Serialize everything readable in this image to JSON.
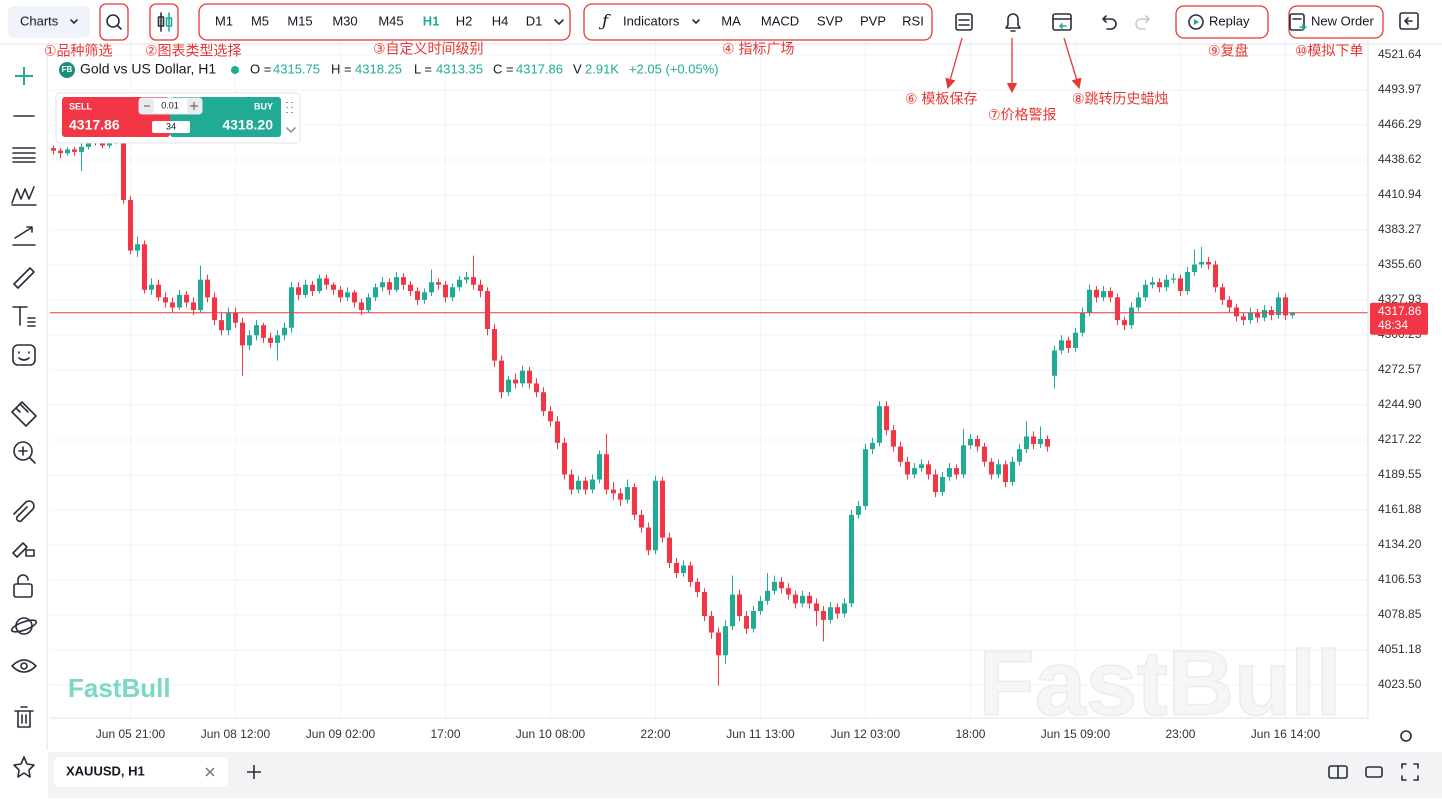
{
  "toolbar": {
    "charts": "Charts",
    "timeframes": [
      "M1",
      "M5",
      "M15",
      "M30",
      "M45",
      "H1",
      "H2",
      "H4",
      "D1"
    ],
    "indicators": "Indicators",
    "indicator_shortcuts": [
      "MA",
      "MACD",
      "SVP",
      "PVP",
      "RSI"
    ],
    "replay": "Replay",
    "new_order": "New Order"
  },
  "annotations": [
    "①品种筛选",
    "②图表类型选择",
    "③自定义时间级别",
    "④ 指标广场",
    "⑥ 模板保存",
    "⑦价格警报",
    "⑧跳转历史蜡烛",
    "⑨复盘",
    "⑩模拟下单"
  ],
  "legend": {
    "badge": "FB",
    "symbol": "Gold vs US Dollar, H1",
    "o_label": "O =",
    "h_label": "H =",
    "l_label": "L =",
    "c_label": "C =",
    "v_label": "V",
    "volume": "2.91K",
    "change": "+2.05 (+0.05%)"
  },
  "trade_panel": {
    "sell": "SELL",
    "buy": "BUY",
    "lot": "0.01",
    "spread": "34",
    "sell_price": "4317.86",
    "buy_price": "4318.20"
  },
  "countdown": "48:34",
  "watermark": "FastBull",
  "tab": "XAUUSD, H1",
  "chart_data": {
    "type": "candlestick",
    "up_color": "#22ab94",
    "down_color": "#f23645",
    "grid": true,
    "xlim": [
      -0.5,
      187.79
    ],
    "ylim": [
      3997.4,
      4533.5
    ],
    "xticks": [
      {
        "value": 11,
        "label": "Jun 05 21:00"
      },
      {
        "value": 26,
        "label": "Jun 08 12:00"
      },
      {
        "value": 41,
        "label": "Jun 09 02:00"
      },
      {
        "value": 56,
        "label": "17:00"
      },
      {
        "value": 71,
        "label": "Jun 10 08:00"
      },
      {
        "value": 86,
        "label": "22:00"
      },
      {
        "value": 101,
        "label": "Jun 11 13:00"
      },
      {
        "value": 116,
        "label": "Jun 12 03:00"
      },
      {
        "value": 131,
        "label": "18:00"
      },
      {
        "value": 146,
        "label": "Jun 15 09:00"
      },
      {
        "value": 161,
        "label": "23:00"
      },
      {
        "value": 176,
        "label": "Jun 16 14:00"
      }
    ],
    "yticks": [
      4521.64,
      4493.97,
      4466.29,
      4438.62,
      4410.94,
      4383.27,
      {
        "value": 4355.6,
        "label": "4355.60"
      },
      4327.93,
      4300.25,
      4272.57,
      {
        "value": 4244.9,
        "label": "4244.90"
      },
      4217.22,
      4189.55,
      4161.88,
      {
        "value": 4134.2,
        "label": "4134.20"
      },
      4106.53,
      4078.85,
      4051.18,
      {
        "value": 4023.5,
        "label": "4023.50"
      }
    ],
    "values": [
      [
        4448,
        4450,
        4443,
        4446
      ],
      [
        4446,
        4448,
        4440,
        4444
      ],
      [
        4444,
        4449,
        4442,
        4447
      ],
      [
        4447,
        4449,
        4442,
        4445
      ],
      [
        4445,
        4455,
        4430,
        4449
      ],
      [
        4449,
        4458,
        4447,
        4455
      ],
      [
        4455,
        4457,
        4450,
        4452
      ],
      [
        4452,
        4454,
        4448,
        4450
      ],
      [
        4450,
        4456,
        4448,
        4453
      ],
      [
        4453,
        4460,
        4451,
        4454
      ],
      [
        4454,
        4456,
        4404,
        4407
      ],
      [
        4407,
        4410,
        4364,
        4367
      ],
      [
        4367,
        4378,
        4362,
        4372
      ],
      [
        4372,
        4375,
        4333,
        4336
      ],
      [
        4336,
        4345,
        4332,
        4340
      ],
      [
        4340,
        4344,
        4327,
        4330
      ],
      [
        4330,
        4334,
        4322,
        4326
      ],
      [
        4326,
        4330,
        4318,
        4322
      ],
      [
        4322,
        4336,
        4320,
        4332
      ],
      [
        4332,
        4335,
        4322,
        4326
      ],
      [
        4326,
        4330,
        4316,
        4320
      ],
      [
        4320,
        4355,
        4318,
        4344
      ],
      [
        4344,
        4348,
        4326,
        4330
      ],
      [
        4330,
        4334,
        4308,
        4312
      ],
      [
        4312,
        4318,
        4300,
        4304
      ],
      [
        4304,
        4322,
        4300,
        4318
      ],
      [
        4318,
        4322,
        4306,
        4310
      ],
      [
        4310,
        4314,
        4268,
        4292
      ],
      [
        4292,
        4304,
        4288,
        4300
      ],
      [
        4300,
        4312,
        4296,
        4308
      ],
      [
        4308,
        4310,
        4294,
        4298
      ],
      [
        4298,
        4302,
        4290,
        4294
      ],
      [
        4294,
        4304,
        4280,
        4300
      ],
      [
        4300,
        4310,
        4296,
        4306
      ],
      [
        4306,
        4342,
        4302,
        4338
      ],
      [
        4338,
        4342,
        4328,
        4332
      ],
      [
        4332,
        4344,
        4330,
        4340
      ],
      [
        4340,
        4343,
        4331,
        4335
      ],
      [
        4335,
        4348,
        4333,
        4345
      ],
      [
        4345,
        4348,
        4336,
        4340
      ],
      [
        4340,
        4342,
        4332,
        4336
      ],
      [
        4336,
        4339,
        4326,
        4330
      ],
      [
        4330,
        4338,
        4327,
        4334
      ],
      [
        4334,
        4336,
        4322,
        4326
      ],
      [
        4326,
        4329,
        4316,
        4320
      ],
      [
        4320,
        4333,
        4318,
        4330
      ],
      [
        4330,
        4341,
        4327,
        4338
      ],
      [
        4338,
        4346,
        4335,
        4342
      ],
      [
        4342,
        4345,
        4332,
        4336
      ],
      [
        4336,
        4350,
        4334,
        4346
      ],
      [
        4346,
        4349,
        4336,
        4340
      ],
      [
        4340,
        4343,
        4331,
        4335
      ],
      [
        4335,
        4338,
        4324,
        4328
      ],
      [
        4328,
        4337,
        4325,
        4334
      ],
      [
        4334,
        4352,
        4331,
        4342
      ],
      [
        4342,
        4345,
        4336,
        4340
      ],
      [
        4340,
        4343,
        4326,
        4330
      ],
      [
        4330,
        4341,
        4327,
        4338
      ],
      [
        4338,
        4347,
        4335,
        4344
      ],
      [
        4344,
        4350,
        4341,
        4346
      ],
      [
        4346,
        4363,
        4336,
        4340
      ],
      [
        4340,
        4344,
        4330,
        4335
      ],
      [
        4335,
        4338,
        4300,
        4305
      ],
      [
        4305,
        4309,
        4275,
        4280
      ],
      [
        4280,
        4284,
        4250,
        4255
      ],
      [
        4255,
        4268,
        4252,
        4265
      ],
      [
        4265,
        4270,
        4258,
        4262
      ],
      [
        4262,
        4276,
        4259,
        4272
      ],
      [
        4272,
        4275,
        4258,
        4262
      ],
      [
        4262,
        4266,
        4251,
        4255
      ],
      [
        4255,
        4259,
        4236,
        4240
      ],
      [
        4240,
        4244,
        4228,
        4232
      ],
      [
        4232,
        4236,
        4210,
        4215
      ],
      [
        4215,
        4219,
        4186,
        4190
      ],
      [
        4190,
        4194,
        4174,
        4178
      ],
      [
        4178,
        4189,
        4175,
        4185
      ],
      [
        4185,
        4188,
        4174,
        4178
      ],
      [
        4178,
        4190,
        4175,
        4186
      ],
      [
        4186,
        4209,
        4183,
        4206
      ],
      [
        4206,
        4222,
        4174,
        4178
      ],
      [
        4178,
        4184,
        4170,
        4175
      ],
      [
        4175,
        4179,
        4165,
        4170
      ],
      [
        4170,
        4186,
        4167,
        4180
      ],
      [
        4180,
        4183,
        4154,
        4158
      ],
      [
        4158,
        4162,
        4144,
        4148
      ],
      [
        4148,
        4152,
        4126,
        4130
      ],
      [
        4130,
        4189,
        4127,
        4185
      ],
      [
        4185,
        4188,
        4136,
        4140
      ],
      [
        4140,
        4144,
        4116,
        4120
      ],
      [
        4120,
        4124,
        4108,
        4112
      ],
      [
        4112,
        4122,
        4109,
        4118
      ],
      [
        4118,
        4121,
        4101,
        4105
      ],
      [
        4105,
        4108,
        4093,
        4097
      ],
      [
        4097,
        4100,
        4074,
        4078
      ],
      [
        4078,
        4082,
        4060,
        4065
      ],
      [
        4065,
        4069,
        4023,
        4047
      ],
      [
        4047,
        4075,
        4040,
        4070
      ],
      [
        4070,
        4110,
        4067,
        4095
      ],
      [
        4095,
        4099,
        4074,
        4078
      ],
      [
        4078,
        4082,
        4064,
        4068
      ],
      [
        4068,
        4086,
        4065,
        4082
      ],
      [
        4082,
        4094,
        4079,
        4090
      ],
      [
        4090,
        4112,
        4087,
        4098
      ],
      [
        4098,
        4110,
        4095,
        4105
      ],
      [
        4105,
        4109,
        4096,
        4100
      ],
      [
        4100,
        4104,
        4091,
        4095
      ],
      [
        4095,
        4098,
        4084,
        4088
      ],
      [
        4088,
        4098,
        4085,
        4094
      ],
      [
        4094,
        4097,
        4084,
        4088
      ],
      [
        4088,
        4092,
        4070,
        4082
      ],
      [
        4082,
        4086,
        4058,
        4075
      ],
      [
        4075,
        4089,
        4072,
        4085
      ],
      [
        4085,
        4088,
        4076,
        4080
      ],
      [
        4080,
        4092,
        4077,
        4088
      ],
      [
        4088,
        4162,
        4085,
        4158
      ],
      [
        4158,
        4169,
        4155,
        4165
      ],
      [
        4165,
        4214,
        4162,
        4210
      ],
      [
        4210,
        4219,
        4206,
        4215
      ],
      [
        4215,
        4248,
        4212,
        4244
      ],
      [
        4244,
        4248,
        4221,
        4225
      ],
      [
        4225,
        4229,
        4208,
        4212
      ],
      [
        4212,
        4216,
        4196,
        4200
      ],
      [
        4200,
        4204,
        4186,
        4190
      ],
      [
        4190,
        4199,
        4187,
        4195
      ],
      [
        4195,
        4202,
        4192,
        4198
      ],
      [
        4198,
        4201,
        4186,
        4190
      ],
      [
        4190,
        4194,
        4172,
        4176
      ],
      [
        4176,
        4192,
        4173,
        4188
      ],
      [
        4188,
        4199,
        4185,
        4195
      ],
      [
        4195,
        4198,
        4186,
        4190
      ],
      [
        4190,
        4226,
        4187,
        4213
      ],
      [
        4213,
        4222,
        4210,
        4218
      ],
      [
        4218,
        4221,
        4208,
        4212
      ],
      [
        4212,
        4215,
        4196,
        4200
      ],
      [
        4200,
        4203,
        4186,
        4190
      ],
      [
        4190,
        4202,
        4187,
        4198
      ],
      [
        4198,
        4201,
        4180,
        4184
      ],
      [
        4184,
        4204,
        4181,
        4200
      ],
      [
        4200,
        4214,
        4197,
        4210
      ],
      [
        4210,
        4232,
        4207,
        4220
      ],
      [
        4220,
        4224,
        4210,
        4214
      ],
      [
        4214,
        4228,
        4211,
        4218
      ],
      [
        4218,
        4221,
        4208,
        4212
      ],
      [
        4268,
        4292,
        4258,
        4288
      ],
      [
        4288,
        4300,
        4285,
        4296
      ],
      [
        4296,
        4299,
        4286,
        4290
      ],
      [
        4290,
        4306,
        4287,
        4302
      ],
      [
        4302,
        4322,
        4299,
        4318
      ],
      [
        4318,
        4340,
        4315,
        4336
      ],
      [
        4336,
        4339,
        4326,
        4330
      ],
      [
        4330,
        4339,
        4327,
        4335
      ],
      [
        4335,
        4338,
        4326,
        4330
      ],
      [
        4330,
        4333,
        4308,
        4312
      ],
      [
        4312,
        4315,
        4304,
        4308
      ],
      [
        4308,
        4326,
        4305,
        4322
      ],
      [
        4322,
        4334,
        4319,
        4330
      ],
      [
        4330,
        4344,
        4327,
        4340
      ],
      [
        4340,
        4346,
        4337,
        4342
      ],
      [
        4342,
        4345,
        4334,
        4338
      ],
      [
        4338,
        4348,
        4335,
        4344
      ],
      [
        4344,
        4349,
        4341,
        4345
      ],
      [
        4345,
        4348,
        4331,
        4335
      ],
      [
        4335,
        4354,
        4332,
        4350
      ],
      [
        4350,
        4368,
        4347,
        4356
      ],
      [
        4356,
        4370,
        4353,
        4358
      ],
      [
        4358,
        4362,
        4352,
        4356
      ],
      [
        4356,
        4359,
        4334,
        4338
      ],
      [
        4338,
        4341,
        4324,
        4328
      ],
      [
        4328,
        4331,
        4318,
        4322
      ],
      [
        4322,
        4325,
        4311,
        4315
      ],
      [
        4315,
        4318,
        4308,
        4312
      ],
      [
        4312,
        4322,
        4309,
        4318
      ],
      [
        4318,
        4321,
        4310,
        4314
      ],
      [
        4314,
        4324,
        4311,
        4320
      ],
      [
        4320,
        4323,
        4312,
        4316
      ],
      [
        4316,
        4334,
        4313,
        4330
      ],
      [
        4330,
        4333,
        4312,
        4315.75
      ],
      [
        4315.75,
        4318.25,
        4313.35,
        4317.86
      ]
    ]
  }
}
